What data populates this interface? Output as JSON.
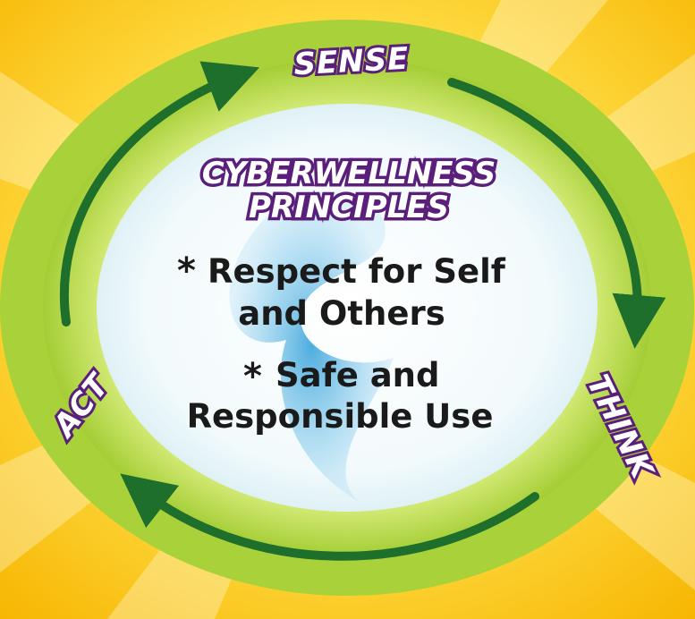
{
  "cycle": {
    "top_label": "SENSE",
    "right_label": "THINK",
    "left_label": "ACT"
  },
  "center": {
    "title_line1": "CYBERWELLNESS",
    "title_line2": "PRINCIPLES",
    "bullet": "*",
    "principle1_line1": "Respect for Self",
    "principle1_line2": "and Others",
    "principle2_line1": "Safe and",
    "principle2_line2": "Responsible Use"
  },
  "colors": {
    "background": "#ffd21f",
    "outer_ring": "#a8d13a",
    "inner_ring": "#cde66a",
    "arrow": "#1e6e2c",
    "label_outline": "#5a1f7a",
    "center_fill": "#f4fbfd"
  }
}
